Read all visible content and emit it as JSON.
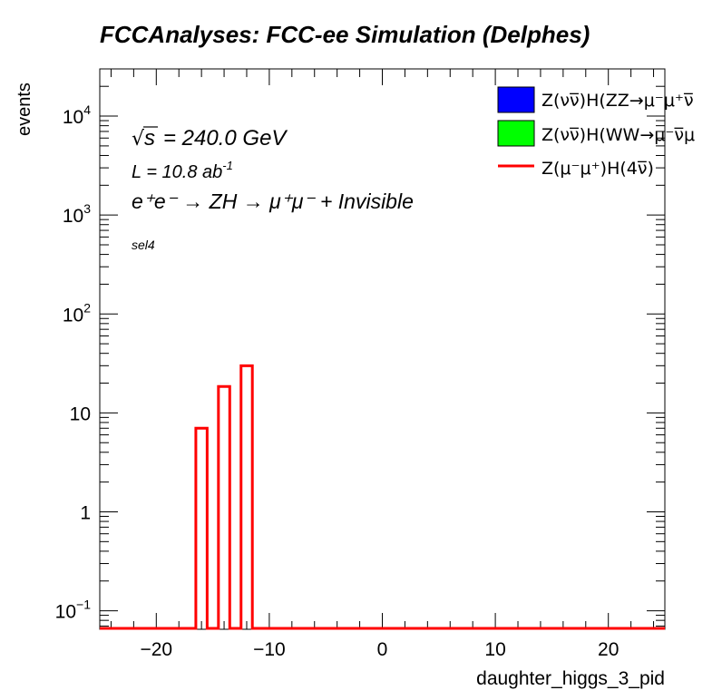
{
  "chart_data": {
    "type": "bar",
    "title": "FCCAnalyses: FCC-ee Simulation (Delphes)",
    "xlabel": "daughter_higgs_3_pid",
    "ylabel": "events",
    "xlim": [
      -25,
      25
    ],
    "ylim": [
      0.065,
      30000
    ],
    "y_log_scale": true,
    "x_tick_labels": [
      "−20",
      "−10",
      "0",
      "10",
      "20"
    ],
    "x_ticks": [
      -20,
      -10,
      0,
      10,
      20
    ],
    "y_ticks": [
      {
        "value": 0.1,
        "label": "10",
        "sup": "−1"
      },
      {
        "value": 1,
        "label": "1",
        "sup": ""
      },
      {
        "value": 10,
        "label": "10",
        "sup": ""
      },
      {
        "value": 100,
        "label": "10",
        "sup": "2"
      },
      {
        "value": 1000,
        "label": "10",
        "sup": "3"
      },
      {
        "value": 10000,
        "label": "10",
        "sup": "4"
      }
    ],
    "annotations": {
      "sqrt_s": "= 240.0 GeV",
      "lumi_base": "L = 10.8 ab",
      "lumi_exp": "-1",
      "process": "e⁺e⁻ → ZH → μ⁺μ⁻ + Invisible",
      "selection": "sel4"
    },
    "legend_position": "top-right",
    "series": [
      {
        "name": "Z(νν̅)H(ZZ→μ⁻μ⁺ν̅",
        "style": "filled",
        "color": "#0000ff",
        "bins": []
      },
      {
        "name": "Z(νν̅)H(WW→μ⁻ν̅μ",
        "style": "filled",
        "color": "#00ff00",
        "bins": []
      },
      {
        "name": "Z(μ⁻μ⁺)H(4ν̅)",
        "style": "line",
        "color": "#ff0000",
        "bins": [
          {
            "x0": -16.5,
            "x1": -15.5,
            "value": 7
          },
          {
            "x0": -14.5,
            "x1": -13.5,
            "value": 18.5
          },
          {
            "x0": -12.5,
            "x1": -11.5,
            "value": 30
          }
        ]
      }
    ]
  }
}
